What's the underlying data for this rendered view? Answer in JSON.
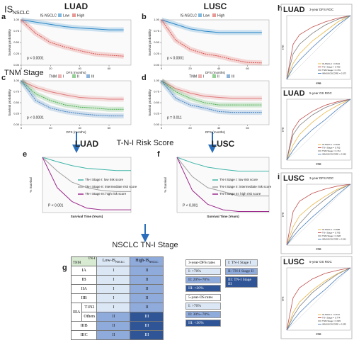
{
  "headers": {
    "row_a_main": "IS",
    "row_a_sub": "NSCLC",
    "row_c": "TNM Stage",
    "risk_title": "T-N-I Risk Score",
    "stage_title": "NSCLC TN-I Stage",
    "panel_g": "g",
    "panel_h": "h",
    "panel_i": "i"
  },
  "chart_data": [
    {
      "type": "line",
      "panel": "a",
      "title": "LUAD",
      "legend": "top",
      "legend_title": "IS-NSCLC",
      "x_label": "DFS (months)",
      "y_label": "Survival probability",
      "annotation": "p < 0.0001",
      "band": true,
      "xlim": [
        0,
        75
      ],
      "ylim": [
        0,
        1
      ],
      "xticks": [
        0,
        20,
        40,
        60
      ],
      "yticks": [
        {
          "value": 0,
          "label": "0.00"
        },
        0.25,
        {
          "value": 0.5,
          "label": "0.50"
        },
        0.75,
        {
          "value": 1,
          "label": "1.00"
        }
      ],
      "x": [
        0,
        10,
        20,
        30,
        40,
        50,
        60,
        70
      ],
      "series": [
        {
          "name": "Low",
          "color": "#2b87c8",
          "values": [
            1,
            0.95,
            0.9,
            0.85,
            0.82,
            0.8,
            0.78,
            0.78
          ]
        },
        {
          "name": "High",
          "color": "#d9534f",
          "values": [
            1,
            0.7,
            0.5,
            0.4,
            0.32,
            0.25,
            0.22,
            0.2
          ]
        }
      ]
    },
    {
      "type": "line",
      "panel": "b",
      "title": "LUSC",
      "legend": "top",
      "legend_title": "IS-NSCLC",
      "x_label": "DFS (months)",
      "y_label": "Survival probability",
      "annotation": "p < 0.0001",
      "band": true,
      "xlim": [
        0,
        75
      ],
      "ylim": [
        0,
        1
      ],
      "xticks": [
        0,
        20,
        40,
        60
      ],
      "yticks": [
        {
          "value": 0,
          "label": "0.00"
        },
        0.25,
        {
          "value": 0.5,
          "label": "0.50"
        },
        0.75,
        {
          "value": 1,
          "label": "1.00"
        }
      ],
      "x": [
        0,
        10,
        20,
        30,
        40,
        50,
        60,
        70
      ],
      "series": [
        {
          "name": "Low",
          "color": "#2b87c8",
          "values": [
            1,
            0.9,
            0.8,
            0.75,
            0.72,
            0.72,
            0.72,
            0.72
          ]
        },
        {
          "name": "High",
          "color": "#d9534f",
          "values": [
            1,
            0.55,
            0.35,
            0.25,
            0.2,
            0.12,
            0.06,
            0.05
          ]
        }
      ]
    },
    {
      "type": "line",
      "panel": "c",
      "legend": "top",
      "legend_title": "TNM",
      "x_label": "DFS (months)",
      "y_label": "Survival probability",
      "annotation": "p < 0.0001",
      "band": true,
      "xlim": [
        0,
        75
      ],
      "ylim": [
        0,
        1
      ],
      "xticks": [
        0,
        20,
        40,
        60
      ],
      "yticks": [
        {
          "value": 0,
          "label": "0.00"
        },
        0.25,
        {
          "value": 0.5,
          "label": "0.50"
        },
        0.75,
        {
          "value": 1,
          "label": "1.00"
        }
      ],
      "x": [
        0,
        10,
        20,
        30,
        40,
        50,
        60,
        70
      ],
      "series": [
        {
          "name": "I",
          "color": "#e07b7b",
          "values": [
            1,
            0.85,
            0.75,
            0.68,
            0.62,
            0.6,
            0.58,
            0.58
          ]
        },
        {
          "name": "II",
          "color": "#4caf50",
          "values": [
            1,
            0.7,
            0.55,
            0.45,
            0.4,
            0.38,
            0.35,
            0.35
          ]
        },
        {
          "name": "III",
          "color": "#3f7fc1",
          "values": [
            1,
            0.55,
            0.38,
            0.3,
            0.25,
            0.22,
            0.2,
            0.2
          ]
        }
      ]
    },
    {
      "type": "line",
      "panel": "d",
      "legend": "top",
      "legend_title": "TNM",
      "x_label": "DFS (months)",
      "y_label": "Survival probability",
      "annotation": "p = 0.011",
      "band": true,
      "xlim": [
        0,
        75
      ],
      "ylim": [
        0,
        1
      ],
      "xticks": [
        0,
        20,
        40,
        60
      ],
      "yticks": [
        {
          "value": 0,
          "label": "0.00"
        },
        0.25,
        {
          "value": 0.5,
          "label": "0.50"
        },
        0.75,
        {
          "value": 1,
          "label": "1.00"
        }
      ],
      "x": [
        0,
        10,
        20,
        30,
        40,
        50,
        60,
        70
      ],
      "series": [
        {
          "name": "I",
          "color": "#e07b7b",
          "values": [
            1,
            0.82,
            0.72,
            0.65,
            0.62,
            0.6,
            0.6,
            0.6
          ]
        },
        {
          "name": "II",
          "color": "#4caf50",
          "values": [
            1,
            0.75,
            0.6,
            0.5,
            0.45,
            0.45,
            0.45,
            0.45
          ]
        },
        {
          "name": "III",
          "color": "#3f7fc1",
          "values": [
            1,
            0.6,
            0.45,
            0.38,
            0.3,
            0.28,
            0.28,
            0.28
          ]
        }
      ]
    },
    {
      "type": "line",
      "panel": "e",
      "title": "LUAD",
      "legend": "right",
      "x_label": "Survival Time (Years)",
      "y_label": "% Survival",
      "annotation": "P < 0.001",
      "xlim": [
        0,
        6
      ],
      "ylim": [
        0,
        100
      ],
      "x": [
        0,
        1,
        2,
        3,
        4,
        5,
        6
      ],
      "series": [
        {
          "name": "TN-I Stage I: low risk score",
          "color": "#3fb5a8",
          "values": [
            100,
            92,
            85,
            80,
            78,
            76,
            76
          ]
        },
        {
          "name": "TN-I Stage II: intermediate risk score",
          "color": "#a0a0a0",
          "values": [
            100,
            75,
            55,
            45,
            40,
            38,
            38
          ]
        },
        {
          "name": "TN-I Stage III: high risk score",
          "color": "#9c2a8c",
          "values": [
            100,
            45,
            20,
            8,
            5,
            5,
            5
          ]
        }
      ]
    },
    {
      "type": "line",
      "panel": "f",
      "title": "LUSC",
      "legend": "right",
      "x_label": "Survival Time (Years)",
      "y_label": "% Survival",
      "annotation": "P < 0.001",
      "xlim": [
        0,
        6
      ],
      "ylim": [
        0,
        100
      ],
      "x": [
        0,
        1,
        2,
        3,
        4,
        5,
        6
      ],
      "series": [
        {
          "name": "TN-I Stage I: low risk score",
          "color": "#3fb5a8",
          "values": [
            100,
            90,
            82,
            78,
            75,
            75,
            75
          ]
        },
        {
          "name": "TN-I Stage II: intermediate risk score",
          "color": "#a0a0a0",
          "values": [
            100,
            65,
            45,
            38,
            30,
            30,
            30
          ]
        },
        {
          "name": "TN-I Stage III: high risk score",
          "color": "#9c2a8c",
          "values": [
            100,
            40,
            15,
            5,
            2,
            2,
            2
          ]
        }
      ]
    },
    {
      "type": "line",
      "title": "LUAD",
      "subtitle": "3-year DFS ROC",
      "legend": "bottom-right",
      "diagonal": true,
      "x_label": "FPR",
      "y_label": "TPR",
      "xlim": [
        0,
        1
      ],
      "ylim": [
        0,
        1
      ],
      "x": [
        0,
        0.1,
        0.2,
        0.4,
        0.6,
        0.8,
        1
      ],
      "series": [
        {
          "name": "IS-NSCLC = 0.634",
          "color": "#e8b84a",
          "values": [
            0,
            0.25,
            0.4,
            0.6,
            0.75,
            0.9,
            1
          ]
        },
        {
          "name": "TN-I Stage = 0.780",
          "color": "#c0504d",
          "values": [
            0,
            0.55,
            0.7,
            0.82,
            0.9,
            0.96,
            1
          ]
        },
        {
          "name": "TNM Stage = 0.701",
          "color": "#7f7f7f",
          "values": [
            0,
            0.4,
            0.55,
            0.72,
            0.85,
            0.94,
            1
          ]
        },
        {
          "name": "IMMUNOSCORE = 0.573",
          "color": "#4f81bd",
          "values": [
            0,
            0.18,
            0.3,
            0.5,
            0.68,
            0.85,
            1
          ]
        }
      ]
    },
    {
      "type": "line",
      "title": "LUAD",
      "subtitle": "5-year OS ROC",
      "legend": "bottom-right",
      "diagonal": true,
      "x_label": "FPR",
      "y_label": "TPR",
      "xlim": [
        0,
        1
      ],
      "ylim": [
        0,
        1
      ],
      "x": [
        0,
        0.1,
        0.2,
        0.4,
        0.6,
        0.8,
        1
      ],
      "series": [
        {
          "name": "IS-NSCLC = 0.646",
          "color": "#e8b84a",
          "values": [
            0,
            0.25,
            0.42,
            0.62,
            0.78,
            0.9,
            1
          ]
        },
        {
          "name": "TN-I Stage = 0.762",
          "color": "#c0504d",
          "values": [
            0,
            0.5,
            0.66,
            0.8,
            0.9,
            0.96,
            1
          ]
        },
        {
          "name": "TNM Stage = 0.712",
          "color": "#7f7f7f",
          "values": [
            0,
            0.42,
            0.57,
            0.74,
            0.86,
            0.94,
            1
          ]
        },
        {
          "name": "IMMUNOSCORE = 0.562",
          "color": "#4f81bd",
          "values": [
            0,
            0.16,
            0.3,
            0.5,
            0.66,
            0.84,
            1
          ]
        }
      ]
    },
    {
      "type": "line",
      "title": "LUSC",
      "subtitle": "3-year DFS ROC",
      "legend": "bottom-right",
      "diagonal": true,
      "x_label": "FPR",
      "y_label": "TPR",
      "xlim": [
        0,
        1
      ],
      "ylim": [
        0,
        1
      ],
      "x": [
        0,
        0.1,
        0.2,
        0.4,
        0.6,
        0.8,
        1
      ],
      "series": [
        {
          "name": "IS-NSCLC = 0.688",
          "color": "#e8b84a",
          "values": [
            0,
            0.3,
            0.48,
            0.66,
            0.8,
            0.92,
            1
          ]
        },
        {
          "name": "TN-I Stage = 0.795",
          "color": "#c0504d",
          "values": [
            0,
            0.55,
            0.72,
            0.85,
            0.92,
            0.97,
            1
          ]
        },
        {
          "name": "TNM Stage = 0.628",
          "color": "#7f7f7f",
          "values": [
            0,
            0.2,
            0.35,
            0.58,
            0.75,
            0.9,
            1
          ]
        },
        {
          "name": "IMMUNOSCORE = 0.541",
          "color": "#4f81bd",
          "values": [
            0,
            0.14,
            0.26,
            0.46,
            0.64,
            0.83,
            1
          ]
        }
      ]
    },
    {
      "type": "line",
      "title": "LUSC",
      "subtitle": "5-year OS ROC",
      "legend": "bottom-right",
      "diagonal": true,
      "x_label": "FPR",
      "y_label": "TPR",
      "xlim": [
        0,
        1
      ],
      "ylim": [
        0,
        1
      ],
      "x": [
        0,
        0.1,
        0.2,
        0.4,
        0.6,
        0.8,
        1
      ],
      "series": [
        {
          "name": "IS-NSCLC = 0.672",
          "color": "#e8b84a",
          "values": [
            0,
            0.28,
            0.45,
            0.64,
            0.79,
            0.91,
            1
          ]
        },
        {
          "name": "TN-I Stage = 0.774",
          "color": "#c0504d",
          "values": [
            0,
            0.52,
            0.68,
            0.82,
            0.91,
            0.96,
            1
          ]
        },
        {
          "name": "TNM Stage = 0.645",
          "color": "#7f7f7f",
          "values": [
            0,
            0.22,
            0.38,
            0.6,
            0.76,
            0.9,
            1
          ]
        },
        {
          "name": "IMMUNOSCORE = 0.552",
          "color": "#4f81bd",
          "values": [
            0,
            0.15,
            0.28,
            0.48,
            0.65,
            0.84,
            1
          ]
        }
      ]
    }
  ],
  "table": {
    "corner_top": "TN-I",
    "corner_bottom": "TNM",
    "col_low": "Low-IS",
    "col_low_sub": "NSCLC",
    "col_high": "High-IS",
    "col_high_sub": "NSCLC",
    "cell_colors": {
      "I": "#dce7f5",
      "II": "#8fabdc",
      "III": "#2f5597"
    },
    "rows": [
      {
        "stage": "IA",
        "cells": [
          "I",
          "II"
        ]
      },
      {
        "stage": "IB",
        "cells": [
          "I",
          "II"
        ]
      },
      {
        "stage": "IIA",
        "cells": [
          "I",
          "II"
        ]
      },
      {
        "stage": "IIB",
        "cells": [
          "I",
          "II"
        ]
      },
      {
        "stage": "IIIA",
        "sub": "T1N2",
        "cells": [
          "I",
          "II"
        ]
      },
      {
        "sub": "Others",
        "cells": [
          "II",
          "III"
        ]
      },
      {
        "stage": "IIIB",
        "cells": [
          "II",
          "III"
        ]
      },
      {
        "stage": "IIIC",
        "cells": [
          "II",
          "III"
        ]
      }
    ],
    "legend_dfs_title": "3-year-DFS rates",
    "legend_dfs": [
      "I: >70%",
      "II: 20%~70%",
      "III: <20%"
    ],
    "legend_os_title": "5-year-OS rates",
    "legend_os": [
      "I: >70%",
      "II: 30%~70%",
      "III: <30%"
    ],
    "legend_stage": [
      "I: TN-I Stage I",
      "II: TN-I Stage II",
      "III: TN-I Stage III"
    ]
  }
}
